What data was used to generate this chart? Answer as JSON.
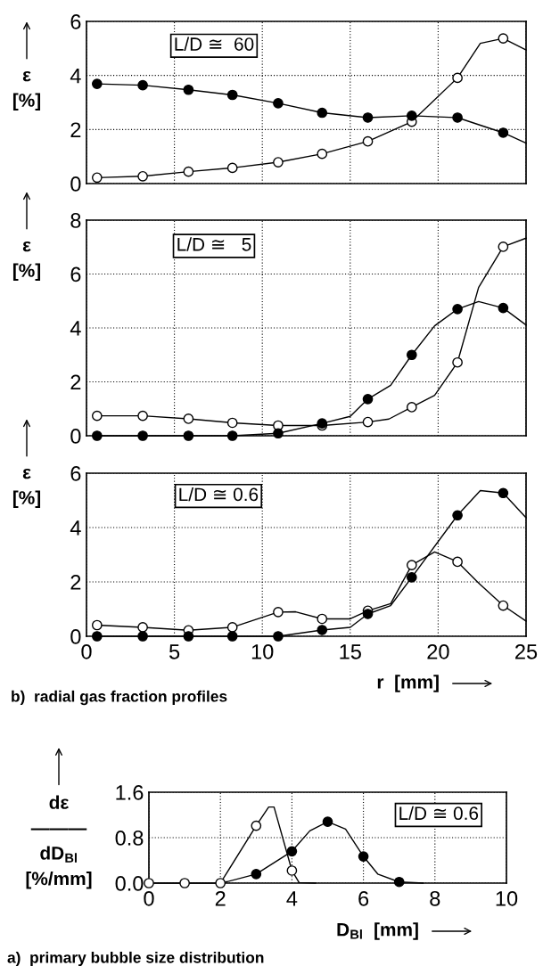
{
  "chart_data": [
    {
      "type": "line",
      "ylabel": "ε\n[%]",
      "annotations": [
        "L/D ≅  60"
      ],
      "tick_labels": "y",
      "grid": true,
      "xlim": [
        0,
        25
      ],
      "xticks": [
        0,
        5,
        10,
        15,
        20,
        25
      ],
      "ylim": [
        0,
        6
      ],
      "yticks": [
        0,
        2,
        4,
        6
      ],
      "series": [
        {
          "type": "line",
          "color": "#000000",
          "x": [
            0.6,
            3.2,
            5.8,
            8.3,
            10.9,
            13.4,
            16.0,
            18.5,
            21.1,
            23.7,
            25
          ],
          "values": [
            3.69,
            3.64,
            3.47,
            3.28,
            2.97,
            2.62,
            2.44,
            2.51,
            2.44,
            1.88,
            1.5
          ]
        },
        {
          "type": "line",
          "color": "#000000",
          "x": [
            0.6,
            3.2,
            5.8,
            8.3,
            10.9,
            13.4,
            16.0,
            18.5,
            21.1,
            22.4,
            23.7,
            25
          ],
          "values": [
            0.22,
            0.27,
            0.44,
            0.58,
            0.79,
            1.1,
            1.56,
            2.29,
            3.91,
            5.19,
            5.37,
            4.94
          ]
        },
        {
          "type": "scatter",
          "marker": "circle",
          "color": "#000000",
          "x": [
            0.6,
            3.2,
            5.8,
            8.3,
            10.9,
            13.4,
            16.0,
            18.5,
            21.1,
            23.7
          ],
          "values": [
            3.69,
            3.64,
            3.47,
            3.28,
            2.97,
            2.62,
            2.44,
            2.51,
            2.44,
            1.88
          ]
        },
        {
          "type": "scatter",
          "marker": "circle",
          "color": "#ffffff",
          "x": [
            0.6,
            3.2,
            5.8,
            8.3,
            10.9,
            13.4,
            16.0,
            18.5,
            21.1,
            23.7
          ],
          "values": [
            0.22,
            0.27,
            0.44,
            0.58,
            0.79,
            1.1,
            1.56,
            2.29,
            3.91,
            5.37
          ]
        }
      ]
    },
    {
      "type": "line",
      "ylabel": "ε\n[%]",
      "annotations": [
        "L/D ≅   5"
      ],
      "tick_labels": "y",
      "grid": true,
      "xlim": [
        0,
        25
      ],
      "xticks": [
        0,
        5,
        10,
        15,
        20,
        25
      ],
      "ylim": [
        0,
        8
      ],
      "yticks": [
        0,
        2,
        4,
        6,
        8
      ],
      "series": [
        {
          "type": "line",
          "color": "#000000",
          "x": [
            0.6,
            3.2,
            5.8,
            8.3,
            10.9,
            13.4,
            15.0,
            16.0,
            17.3,
            18.5,
            19.8,
            21.1,
            22.3,
            23.7,
            25
          ],
          "values": [
            0,
            0,
            0,
            0,
            0.09,
            0.46,
            0.72,
            1.36,
            1.87,
            3.0,
            4.08,
            4.7,
            4.98,
            4.74,
            4.11
          ]
        },
        {
          "type": "line",
          "color": "#000000",
          "x": [
            0.6,
            3.2,
            5.8,
            8.3,
            10.9,
            13.4,
            16.0,
            17.2,
            18.5,
            19.8,
            21.1,
            22.3,
            23.7,
            25
          ],
          "values": [
            0.74,
            0.74,
            0.63,
            0.48,
            0.38,
            0.38,
            0.51,
            0.62,
            1.06,
            1.5,
            2.72,
            5.5,
            7.01,
            7.33
          ]
        },
        {
          "type": "scatter",
          "marker": "circle",
          "color": "#000000",
          "x": [
            0.6,
            3.2,
            5.8,
            8.3,
            10.9,
            13.4,
            16.0,
            18.5,
            21.1,
            23.7
          ],
          "values": [
            0,
            0,
            0,
            0,
            0.09,
            0.46,
            1.36,
            3.0,
            4.7,
            4.74
          ]
        },
        {
          "type": "scatter",
          "marker": "circle",
          "color": "#ffffff",
          "x": [
            0.6,
            3.2,
            5.8,
            8.3,
            10.9,
            13.4,
            16.0,
            18.5,
            21.1,
            23.7
          ],
          "values": [
            0.74,
            0.74,
            0.63,
            0.48,
            0.38,
            0.38,
            0.51,
            1.06,
            2.72,
            7.01
          ]
        }
      ]
    },
    {
      "type": "line",
      "ylabel": "ε\n[%]",
      "xlabel": "r  [mm]",
      "annotations": [
        "L/D ≅ 0.6",
        "b)  radial gas fraction profiles"
      ],
      "grid": true,
      "xlim": [
        0,
        25
      ],
      "xticks": [
        0,
        5,
        10,
        15,
        20,
        25
      ],
      "ylim": [
        0,
        6
      ],
      "yticks": [
        0,
        2,
        4,
        6
      ],
      "series": [
        {
          "type": "line",
          "color": "#000000",
          "x": [
            0.6,
            3.2,
            5.8,
            8.3,
            10.9,
            13.4,
            15.0,
            16.0,
            17.3,
            18.5,
            21.1,
            22.4,
            23.7,
            25
          ],
          "values": [
            0,
            0,
            0,
            0,
            0,
            0.23,
            0.33,
            0.82,
            1.13,
            2.17,
            4.45,
            5.36,
            5.27,
            4.36
          ]
        },
        {
          "type": "line",
          "color": "#000000",
          "x": [
            0.6,
            3.2,
            5.8,
            8.3,
            10.9,
            11.9,
            13.4,
            15.0,
            16.0,
            17.3,
            18.5,
            19.8,
            21.1,
            22.3,
            23.7,
            25
          ],
          "values": [
            0.41,
            0.33,
            0.22,
            0.33,
            0.89,
            0.9,
            0.64,
            0.64,
            0.94,
            1.2,
            2.62,
            3.1,
            2.74,
            1.96,
            1.13,
            0.56
          ]
        },
        {
          "type": "scatter",
          "marker": "circle",
          "color": "#000000",
          "x": [
            0.6,
            3.2,
            5.8,
            8.3,
            10.9,
            13.4,
            16.0,
            18.5,
            21.1,
            23.7
          ],
          "values": [
            0,
            0,
            0,
            0,
            0,
            0.23,
            0.82,
            2.17,
            4.45,
            5.27
          ]
        },
        {
          "type": "scatter",
          "marker": "circle",
          "color": "#ffffff",
          "x": [
            0.6,
            3.2,
            5.8,
            8.3,
            10.9,
            13.4,
            16.0,
            18.5,
            21.1,
            23.7
          ],
          "values": [
            0.41,
            0.33,
            0.22,
            0.33,
            0.89,
            0.64,
            0.94,
            2.62,
            2.74,
            1.13
          ]
        }
      ]
    },
    {
      "type": "line",
      "ylabel": "dε\n―――\ndD$_{Bl}$\n[%/mm]",
      "xlabel": "D$_{Bl}$  [mm]",
      "annotations": [
        "L/D ≅ 0.6",
        "a)  primary bubble size distribution"
      ],
      "grid": true,
      "xlim": [
        0,
        10
      ],
      "xticks": [
        0,
        2,
        4,
        6,
        8,
        10
      ],
      "ylim": [
        0,
        1.6
      ],
      "yticks": [
        {
          "value": 0,
          "label": "0.0"
        },
        {
          "value": 0.8,
          "label": "0.8"
        },
        {
          "value": 1.6,
          "label": "1.6"
        }
      ],
      "series": [
        {
          "type": "line",
          "color": "#000000",
          "x": [
            0,
            1,
            2,
            3,
            3.35,
            3.5,
            4,
            4.2,
            4.66
          ],
          "values": [
            0,
            0,
            0,
            1.01,
            1.34,
            1.34,
            0.22,
            0.01,
            0
          ]
        },
        {
          "type": "line",
          "color": "#000000",
          "x": [
            2.04,
            3,
            4,
            4.5,
            5,
            5.5,
            6,
            6.4,
            7,
            7.67
          ],
          "values": [
            0,
            0.16,
            0.56,
            0.92,
            1.08,
            0.95,
            0.47,
            0.16,
            0.02,
            0
          ]
        },
        {
          "type": "scatter",
          "marker": "circle",
          "color": "#ffffff",
          "x": [
            0,
            1,
            2,
            3,
            4
          ],
          "values": [
            0,
            0,
            0,
            1.01,
            0.22
          ]
        },
        {
          "type": "scatter",
          "marker": "circle",
          "color": "#000000",
          "x": [
            3,
            4,
            5,
            6,
            7
          ],
          "values": [
            0.16,
            0.56,
            1.08,
            0.47,
            0.02
          ]
        }
      ]
    }
  ]
}
